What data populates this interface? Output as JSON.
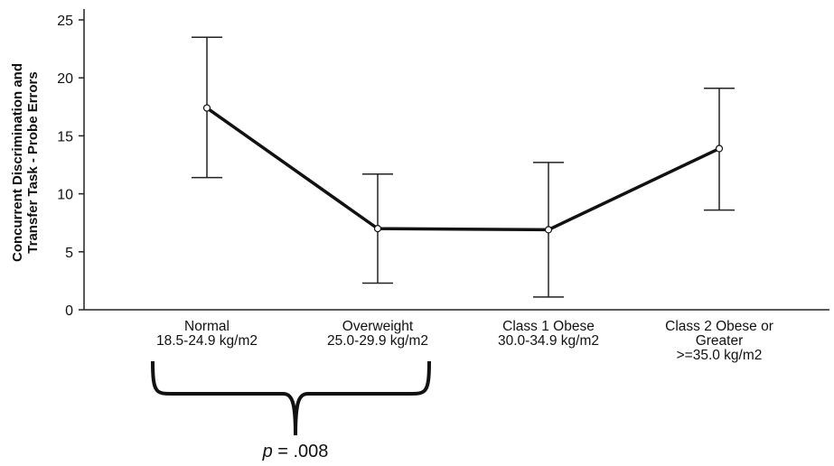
{
  "chart_data": {
    "type": "line",
    "title": "",
    "xlabel": "",
    "ylabel_lines": [
      "Concurrent Discrimination and",
      "Transfer Task - Probe Errors"
    ],
    "ylim": [
      0,
      25
    ],
    "yticks": [
      0,
      5,
      10,
      15,
      20,
      25
    ],
    "categories": [
      {
        "lines": [
          "Normal",
          "18.5-24.9 kg/m2"
        ]
      },
      {
        "lines": [
          "Overweight",
          "25.0-29.9 kg/m2"
        ]
      },
      {
        "lines": [
          "Class 1 Obese",
          "30.0-34.9 kg/m2"
        ]
      },
      {
        "lines": [
          "Class 2 Obese or",
          "Greater",
          ">=35.0 kg/m2"
        ]
      }
    ],
    "series": [
      {
        "values": [
          17.4,
          7.0,
          6.9,
          13.9
        ],
        "error_low": [
          11.4,
          2.3,
          1.1,
          8.6
        ],
        "error_high": [
          23.5,
          11.7,
          12.7,
          19.1
        ]
      }
    ],
    "grid": false,
    "annotation": {
      "brace_between": [
        0,
        1
      ],
      "text_italic": "p",
      "text_rest": " = .008"
    }
  }
}
